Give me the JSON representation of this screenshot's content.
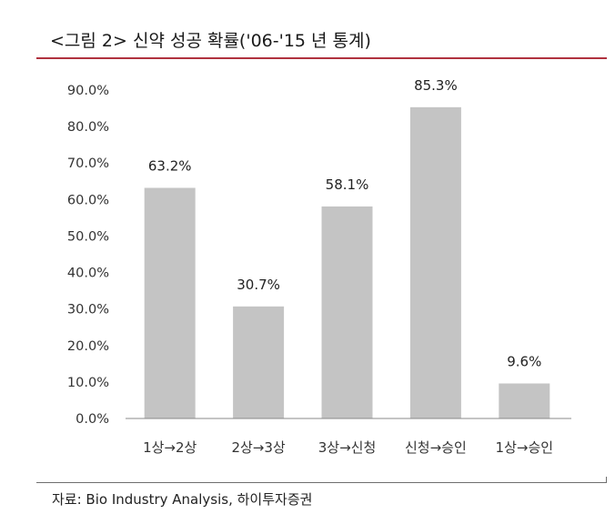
{
  "title": "<그림 2>  신약 성공 확률('06-'15 년 통계)",
  "source": "자료: Bio Industry Analysis, 하이투자증권",
  "chart_data": {
    "type": "bar",
    "title": "<그림 2>  신약 성공 확률('06-'15 년 통계)",
    "categories": [
      "1상→2상",
      "2상→3상",
      "3상→신청",
      "신청→승인",
      "1상→승인"
    ],
    "values": [
      63.2,
      30.7,
      58.1,
      85.3,
      9.6
    ],
    "value_labels": [
      "63.2%",
      "30.7%",
      "58.1%",
      "85.3%",
      "9.6%"
    ],
    "y_ticks": [
      "0.0%",
      "10.0%",
      "20.0%",
      "30.0%",
      "40.0%",
      "50.0%",
      "60.0%",
      "70.0%",
      "80.0%",
      "90.0%"
    ],
    "ylim": [
      0,
      90
    ],
    "grid": false,
    "bar_color": "#c4c4c4",
    "title_rule_color": "#b0323f"
  }
}
